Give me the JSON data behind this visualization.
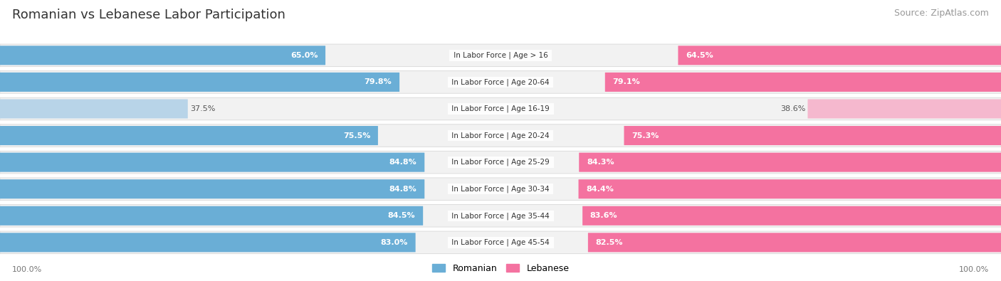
{
  "title": "Romanian vs Lebanese Labor Participation",
  "source": "Source: ZipAtlas.com",
  "categories": [
    "In Labor Force | Age > 16",
    "In Labor Force | Age 20-64",
    "In Labor Force | Age 16-19",
    "In Labor Force | Age 20-24",
    "In Labor Force | Age 25-29",
    "In Labor Force | Age 30-34",
    "In Labor Force | Age 35-44",
    "In Labor Force | Age 45-54"
  ],
  "romanian_values": [
    65.0,
    79.8,
    37.5,
    75.5,
    84.8,
    84.8,
    84.5,
    83.0
  ],
  "lebanese_values": [
    64.5,
    79.1,
    38.6,
    75.3,
    84.3,
    84.4,
    83.6,
    82.5
  ],
  "romanian_color": "#6aaed6",
  "romanian_color_light": "#b8d4e8",
  "lebanese_color": "#f472a0",
  "lebanese_color_light": "#f5b8ce",
  "row_bg_color": "#f2f2f2",
  "row_border_color": "#d8d8d8",
  "label_color_white": "#ffffff",
  "label_color_dark": "#555555",
  "max_value": 100.0,
  "title_fontsize": 13,
  "source_fontsize": 9,
  "label_fontsize": 8,
  "category_fontsize": 7.5,
  "legend_fontsize": 9,
  "footer_fontsize": 8,
  "background_color": "#ffffff"
}
